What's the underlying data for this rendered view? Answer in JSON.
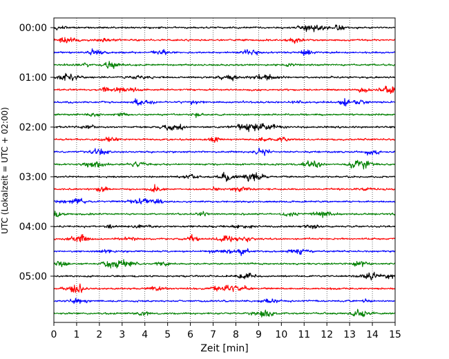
{
  "chart_data": {
    "type": "line",
    "xlabel": "Zeit  [min]",
    "ylabel": "UTC (Lokalzeit = UTC + 02:00)",
    "xlim": [
      0,
      15
    ],
    "xticks": [
      "0",
      "1",
      "2",
      "3",
      "4",
      "5",
      "6",
      "7",
      "8",
      "9",
      "10",
      "11",
      "12",
      "13",
      "14",
      "15"
    ],
    "ytick_labels": [
      "00:00",
      "01:00",
      "02:00",
      "03:00",
      "04:00",
      "05:00"
    ],
    "grid": "vertical dotted",
    "trace_interval_min": 15,
    "trace_count": 24,
    "colors": [
      "#000000",
      "#ff0000",
      "#0000ff",
      "#008000"
    ],
    "traces": [
      {
        "start": "00:00",
        "color": "#000000"
      },
      {
        "start": "00:15",
        "color": "#ff0000"
      },
      {
        "start": "00:30",
        "color": "#0000ff"
      },
      {
        "start": "00:45",
        "color": "#008000"
      },
      {
        "start": "01:00",
        "color": "#000000"
      },
      {
        "start": "01:15",
        "color": "#ff0000"
      },
      {
        "start": "01:30",
        "color": "#0000ff"
      },
      {
        "start": "01:45",
        "color": "#008000"
      },
      {
        "start": "02:00",
        "color": "#000000"
      },
      {
        "start": "02:15",
        "color": "#ff0000"
      },
      {
        "start": "02:30",
        "color": "#0000ff"
      },
      {
        "start": "02:45",
        "color": "#008000"
      },
      {
        "start": "03:00",
        "color": "#000000"
      },
      {
        "start": "03:15",
        "color": "#ff0000"
      },
      {
        "start": "03:30",
        "color": "#0000ff"
      },
      {
        "start": "03:45",
        "color": "#008000"
      },
      {
        "start": "04:00",
        "color": "#000000"
      },
      {
        "start": "04:15",
        "color": "#ff0000"
      },
      {
        "start": "04:30",
        "color": "#0000ff"
      },
      {
        "start": "04:45",
        "color": "#008000"
      },
      {
        "start": "05:00",
        "color": "#000000"
      },
      {
        "start": "05:15",
        "color": "#ff0000"
      },
      {
        "start": "05:30",
        "color": "#0000ff"
      },
      {
        "start": "05:45",
        "color": "#008000"
      }
    ]
  }
}
